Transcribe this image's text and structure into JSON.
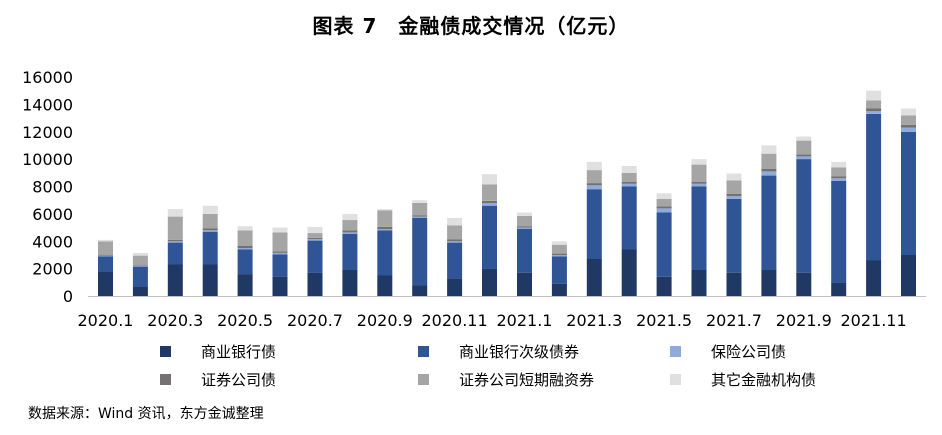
{
  "title": "图表 7　金融债成交情况（亿元）",
  "source": "数据来源：Wind 资讯，东方金诚整理",
  "chart_data": {
    "type": "bar",
    "stacked": true,
    "title": "图表 7　金融债成交情况（亿元）",
    "ylim": [
      0,
      16000
    ],
    "yticks": [
      0,
      2000,
      4000,
      6000,
      8000,
      10000,
      12000,
      14000,
      16000
    ],
    "grid": false,
    "legend_position": "bottom",
    "categories": [
      "2020.1",
      "2020.2",
      "2020.3",
      "2020.4",
      "2020.5",
      "2020.6",
      "2020.7",
      "2020.8",
      "2020.9",
      "2020.10",
      "2020.11",
      "2020.12",
      "2021.1",
      "2021.2",
      "2021.3",
      "2021.4",
      "2021.5",
      "2021.6",
      "2021.7",
      "2021.8",
      "2021.9",
      "2021.10",
      "2021.11",
      "2021.12"
    ],
    "tick_labels": [
      "2020.1",
      "",
      "2020.3",
      "",
      "2020.5",
      "",
      "2020.7",
      "",
      "2020.9",
      "",
      "2020.11",
      "",
      "2021.1",
      "",
      "2021.3",
      "",
      "2021.5",
      "",
      "2021.7",
      "",
      "2021.9",
      "",
      "2021.11",
      ""
    ],
    "series": [
      {
        "name": "商业银行债",
        "color": "#203864",
        "values": [
          1800,
          700,
          2300,
          2300,
          1600,
          1400,
          1700,
          1900,
          1500,
          800,
          1300,
          2000,
          1700,
          900,
          2700,
          3400,
          1400,
          1900,
          1700,
          1900,
          1700,
          1000,
          2600,
          3000
        ]
      },
      {
        "name": "商业银行次级债券",
        "color": "#2f5597",
        "values": [
          1100,
          1450,
          1600,
          2400,
          1800,
          1650,
          2350,
          2650,
          3300,
          4900,
          2600,
          4600,
          3200,
          2000,
          5100,
          4600,
          4700,
          6100,
          5400,
          6900,
          8300,
          7400,
          10700,
          9000
        ]
      },
      {
        "name": "保险公司债",
        "color": "#8faadc",
        "values": [
          50,
          50,
          100,
          100,
          100,
          100,
          100,
          100,
          100,
          100,
          100,
          200,
          100,
          100,
          300,
          200,
          300,
          200,
          200,
          300,
          200,
          200,
          200,
          300
        ]
      },
      {
        "name": "证券公司债",
        "color": "#767171",
        "values": [
          50,
          50,
          100,
          150,
          150,
          100,
          100,
          150,
          150,
          100,
          150,
          150,
          100,
          100,
          150,
          150,
          150,
          150,
          150,
          200,
          150,
          150,
          200,
          200
        ]
      },
      {
        "name": "证券公司短期融资券",
        "color": "#a5a5a5",
        "values": [
          1000,
          700,
          1700,
          1050,
          1150,
          1400,
          350,
          750,
          1200,
          900,
          1000,
          1200,
          750,
          650,
          950,
          650,
          550,
          1250,
          1000,
          1100,
          1000,
          650,
          600,
          700
        ]
      },
      {
        "name": "其它金融机构债",
        "color": "#e0e0e0",
        "values": [
          100,
          200,
          550,
          600,
          300,
          350,
          450,
          450,
          100,
          200,
          550,
          750,
          250,
          250,
          600,
          500,
          400,
          400,
          500,
          600,
          300,
          400,
          700,
          500
        ]
      }
    ]
  },
  "legend": [
    {
      "label": "商业银行债",
      "color": "#203864"
    },
    {
      "label": "商业银行次级债券",
      "color": "#2f5597"
    },
    {
      "label": "保险公司债",
      "color": "#8faadc"
    },
    {
      "label": "证券公司债",
      "color": "#767171"
    },
    {
      "label": "证券公司短期融资券",
      "color": "#a5a5a5"
    },
    {
      "label": "其它金融机构债",
      "color": "#e0e0e0"
    }
  ]
}
